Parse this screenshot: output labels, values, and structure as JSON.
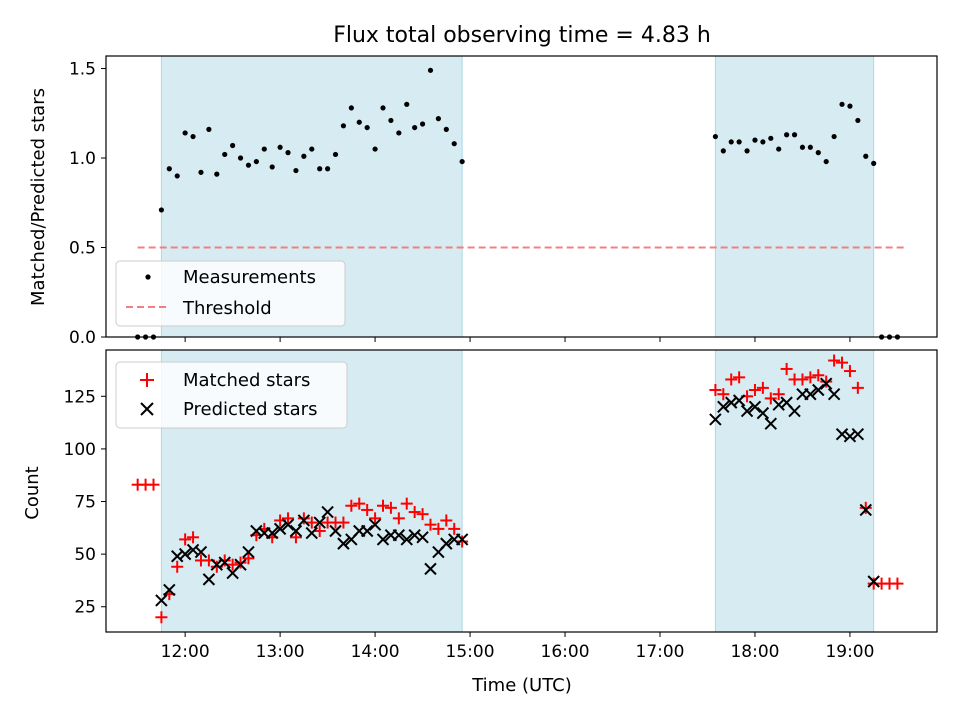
{
  "chart_data": [
    {
      "type": "scatter",
      "title": "Flux total observing time = 4.83 h",
      "ylabel": "Matched/Predicted stars",
      "ylim": [
        0,
        1.57
      ],
      "yticks": [
        0.0,
        0.5,
        1.0,
        1.5
      ],
      "ytick_labels": [
        "0.0",
        "0.5",
        "1.0",
        "1.5"
      ],
      "legend_position": "lower-left",
      "shaded_intervals": [
        [
          "11:45",
          "14:55"
        ],
        [
          "17:35",
          "19:15"
        ]
      ],
      "series": [
        {
          "name": "Measurements",
          "marker": "dot",
          "color": "#000000",
          "points": [
            [
              "11:30",
              0.0
            ],
            [
              "11:35",
              0.0
            ],
            [
              "11:40",
              0.0
            ],
            [
              "11:45",
              0.71
            ],
            [
              "11:50",
              0.94
            ],
            [
              "11:55",
              0.9
            ],
            [
              "12:00",
              1.14
            ],
            [
              "12:05",
              1.12
            ],
            [
              "12:10",
              0.92
            ],
            [
              "12:15",
              1.16
            ],
            [
              "12:20",
              0.91
            ],
            [
              "12:25",
              1.02
            ],
            [
              "12:30",
              1.07
            ],
            [
              "12:35",
              1.0
            ],
            [
              "12:40",
              0.96
            ],
            [
              "12:45",
              0.98
            ],
            [
              "12:50",
              1.05
            ],
            [
              "12:55",
              0.95
            ],
            [
              "13:00",
              1.06
            ],
            [
              "13:05",
              1.03
            ],
            [
              "13:10",
              0.93
            ],
            [
              "13:15",
              1.01
            ],
            [
              "13:20",
              1.05
            ],
            [
              "13:25",
              0.94
            ],
            [
              "13:30",
              0.94
            ],
            [
              "13:35",
              1.02
            ],
            [
              "13:40",
              1.18
            ],
            [
              "13:45",
              1.28
            ],
            [
              "13:50",
              1.2
            ],
            [
              "13:55",
              1.17
            ],
            [
              "14:00",
              1.05
            ],
            [
              "14:05",
              1.28
            ],
            [
              "14:10",
              1.21
            ],
            [
              "14:15",
              1.14
            ],
            [
              "14:20",
              1.3
            ],
            [
              "14:25",
              1.17
            ],
            [
              "14:30",
              1.19
            ],
            [
              "14:35",
              1.49
            ],
            [
              "14:40",
              1.22
            ],
            [
              "14:45",
              1.16
            ],
            [
              "14:50",
              1.08
            ],
            [
              "14:55",
              0.98
            ],
            [
              "17:35",
              1.12
            ],
            [
              "17:40",
              1.04
            ],
            [
              "17:45",
              1.09
            ],
            [
              "17:50",
              1.09
            ],
            [
              "17:55",
              1.04
            ],
            [
              "18:00",
              1.1
            ],
            [
              "18:05",
              1.09
            ],
            [
              "18:10",
              1.11
            ],
            [
              "18:15",
              1.05
            ],
            [
              "18:20",
              1.13
            ],
            [
              "18:25",
              1.13
            ],
            [
              "18:30",
              1.06
            ],
            [
              "18:35",
              1.06
            ],
            [
              "18:40",
              1.03
            ],
            [
              "18:45",
              0.98
            ],
            [
              "18:50",
              1.12
            ],
            [
              "18:55",
              1.3
            ],
            [
              "19:00",
              1.29
            ],
            [
              "19:05",
              1.21
            ],
            [
              "19:10",
              1.01
            ],
            [
              "19:15",
              0.97
            ],
            [
              "19:20",
              0.0
            ],
            [
              "19:25",
              0.0
            ],
            [
              "19:30",
              0.0
            ]
          ]
        },
        {
          "name": "Threshold",
          "marker": "dashed-line",
          "color": "#f08080",
          "points": [
            [
              "11:30",
              0.5
            ],
            [
              "19:35",
              0.5
            ]
          ]
        }
      ]
    },
    {
      "type": "scatter",
      "xlabel": "Time (UTC)",
      "ylabel": "Count",
      "ylim": [
        13,
        147
      ],
      "yticks": [
        25,
        50,
        75,
        100,
        125
      ],
      "ytick_labels": [
        "25",
        "50",
        "75",
        "100",
        "125"
      ],
      "xlim": [
        "11:10",
        "19:55"
      ],
      "xticks": [
        "12:00",
        "13:00",
        "14:00",
        "15:00",
        "16:00",
        "17:00",
        "18:00",
        "19:00"
      ],
      "xtick_labels": [
        "12:00",
        "13:00",
        "14:00",
        "15:00",
        "16:00",
        "17:00",
        "18:00",
        "19:00"
      ],
      "legend_position": "upper-left",
      "shaded_intervals": [
        [
          "11:45",
          "14:55"
        ],
        [
          "17:35",
          "19:15"
        ]
      ],
      "series": [
        {
          "name": "Matched stars",
          "marker": "plus",
          "color": "#ff0000",
          "points": [
            [
              "11:30",
              83
            ],
            [
              "11:35",
              83
            ],
            [
              "11:40",
              83
            ],
            [
              "11:45",
              20
            ],
            [
              "11:50",
              31
            ],
            [
              "11:55",
              44
            ],
            [
              "12:00",
              57
            ],
            [
              "12:05",
              58
            ],
            [
              "12:10",
              47
            ],
            [
              "12:15",
              47
            ],
            [
              "12:20",
              44
            ],
            [
              "12:25",
              47
            ],
            [
              "12:30",
              45
            ],
            [
              "12:35",
              46
            ],
            [
              "12:40",
              48
            ],
            [
              "12:45",
              59
            ],
            [
              "12:50",
              62
            ],
            [
              "12:55",
              58
            ],
            [
              "13:00",
              66
            ],
            [
              "13:05",
              67
            ],
            [
              "13:10",
              58
            ],
            [
              "13:15",
              67
            ],
            [
              "13:20",
              65
            ],
            [
              "13:25",
              61
            ],
            [
              "13:30",
              65
            ],
            [
              "13:35",
              65
            ],
            [
              "13:40",
              65
            ],
            [
              "13:45",
              73
            ],
            [
              "13:50",
              74
            ],
            [
              "13:55",
              71
            ],
            [
              "14:00",
              67
            ],
            [
              "14:05",
              73
            ],
            [
              "14:10",
              72
            ],
            [
              "14:15",
              67
            ],
            [
              "14:20",
              74
            ],
            [
              "14:25",
              70
            ],
            [
              "14:30",
              69
            ],
            [
              "14:35",
              64
            ],
            [
              "14:40",
              62
            ],
            [
              "14:45",
              66
            ],
            [
              "14:50",
              62
            ],
            [
              "14:55",
              56
            ],
            [
              "17:35",
              128
            ],
            [
              "17:40",
              126
            ],
            [
              "17:45",
              133
            ],
            [
              "17:50",
              134
            ],
            [
              "17:55",
              125
            ],
            [
              "18:00",
              128
            ],
            [
              "18:05",
              129
            ],
            [
              "18:10",
              124
            ],
            [
              "18:15",
              126
            ],
            [
              "18:20",
              138
            ],
            [
              "18:25",
              133
            ],
            [
              "18:30",
              133
            ],
            [
              "18:35",
              134
            ],
            [
              "18:40",
              135
            ],
            [
              "18:45",
              132
            ],
            [
              "18:50",
              142
            ],
            [
              "18:55",
              141
            ],
            [
              "19:00",
              137
            ],
            [
              "19:05",
              129
            ],
            [
              "19:10",
              72
            ],
            [
              "19:15",
              36
            ],
            [
              "19:20",
              36
            ],
            [
              "19:25",
              36
            ],
            [
              "19:30",
              36
            ]
          ]
        },
        {
          "name": "Predicted stars",
          "marker": "x",
          "color": "#000000",
          "points": [
            [
              "11:45",
              28
            ],
            [
              "11:50",
              33
            ],
            [
              "11:55",
              49
            ],
            [
              "12:00",
              50
            ],
            [
              "12:05",
              52
            ],
            [
              "12:10",
              51
            ],
            [
              "12:15",
              38
            ],
            [
              "12:20",
              45
            ],
            [
              "12:25",
              46
            ],
            [
              "12:30",
              41
            ],
            [
              "12:35",
              45
            ],
            [
              "12:40",
              51
            ],
            [
              "12:45",
              61
            ],
            [
              "12:50",
              60
            ],
            [
              "12:55",
              60
            ],
            [
              "13:00",
              62
            ],
            [
              "13:05",
              64
            ],
            [
              "13:10",
              61
            ],
            [
              "13:15",
              66
            ],
            [
              "13:20",
              60
            ],
            [
              "13:25",
              65
            ],
            [
              "13:30",
              70
            ],
            [
              "13:35",
              61
            ],
            [
              "13:40",
              55
            ],
            [
              "13:45",
              57
            ],
            [
              "13:50",
              61
            ],
            [
              "13:55",
              61
            ],
            [
              "14:00",
              64
            ],
            [
              "14:05",
              57
            ],
            [
              "14:10",
              59
            ],
            [
              "14:15",
              59
            ],
            [
              "14:20",
              57
            ],
            [
              "14:25",
              59
            ],
            [
              "14:30",
              58
            ],
            [
              "14:35",
              43
            ],
            [
              "14:40",
              51
            ],
            [
              "14:45",
              55
            ],
            [
              "14:50",
              57
            ],
            [
              "14:55",
              57
            ],
            [
              "17:35",
              114
            ],
            [
              "17:40",
              120
            ],
            [
              "17:45",
              122
            ],
            [
              "17:50",
              123
            ],
            [
              "17:55",
              118
            ],
            [
              "18:00",
              120
            ],
            [
              "18:05",
              117
            ],
            [
              "18:10",
              112
            ],
            [
              "18:15",
              121
            ],
            [
              "18:20",
              122
            ],
            [
              "18:25",
              118
            ],
            [
              "18:30",
              126
            ],
            [
              "18:35",
              126
            ],
            [
              "18:40",
              128
            ],
            [
              "18:45",
              131
            ],
            [
              "18:50",
              126
            ],
            [
              "18:55",
              107
            ],
            [
              "19:00",
              106
            ],
            [
              "19:05",
              107
            ],
            [
              "19:10",
              71
            ],
            [
              "19:15",
              37
            ]
          ]
        }
      ]
    }
  ]
}
